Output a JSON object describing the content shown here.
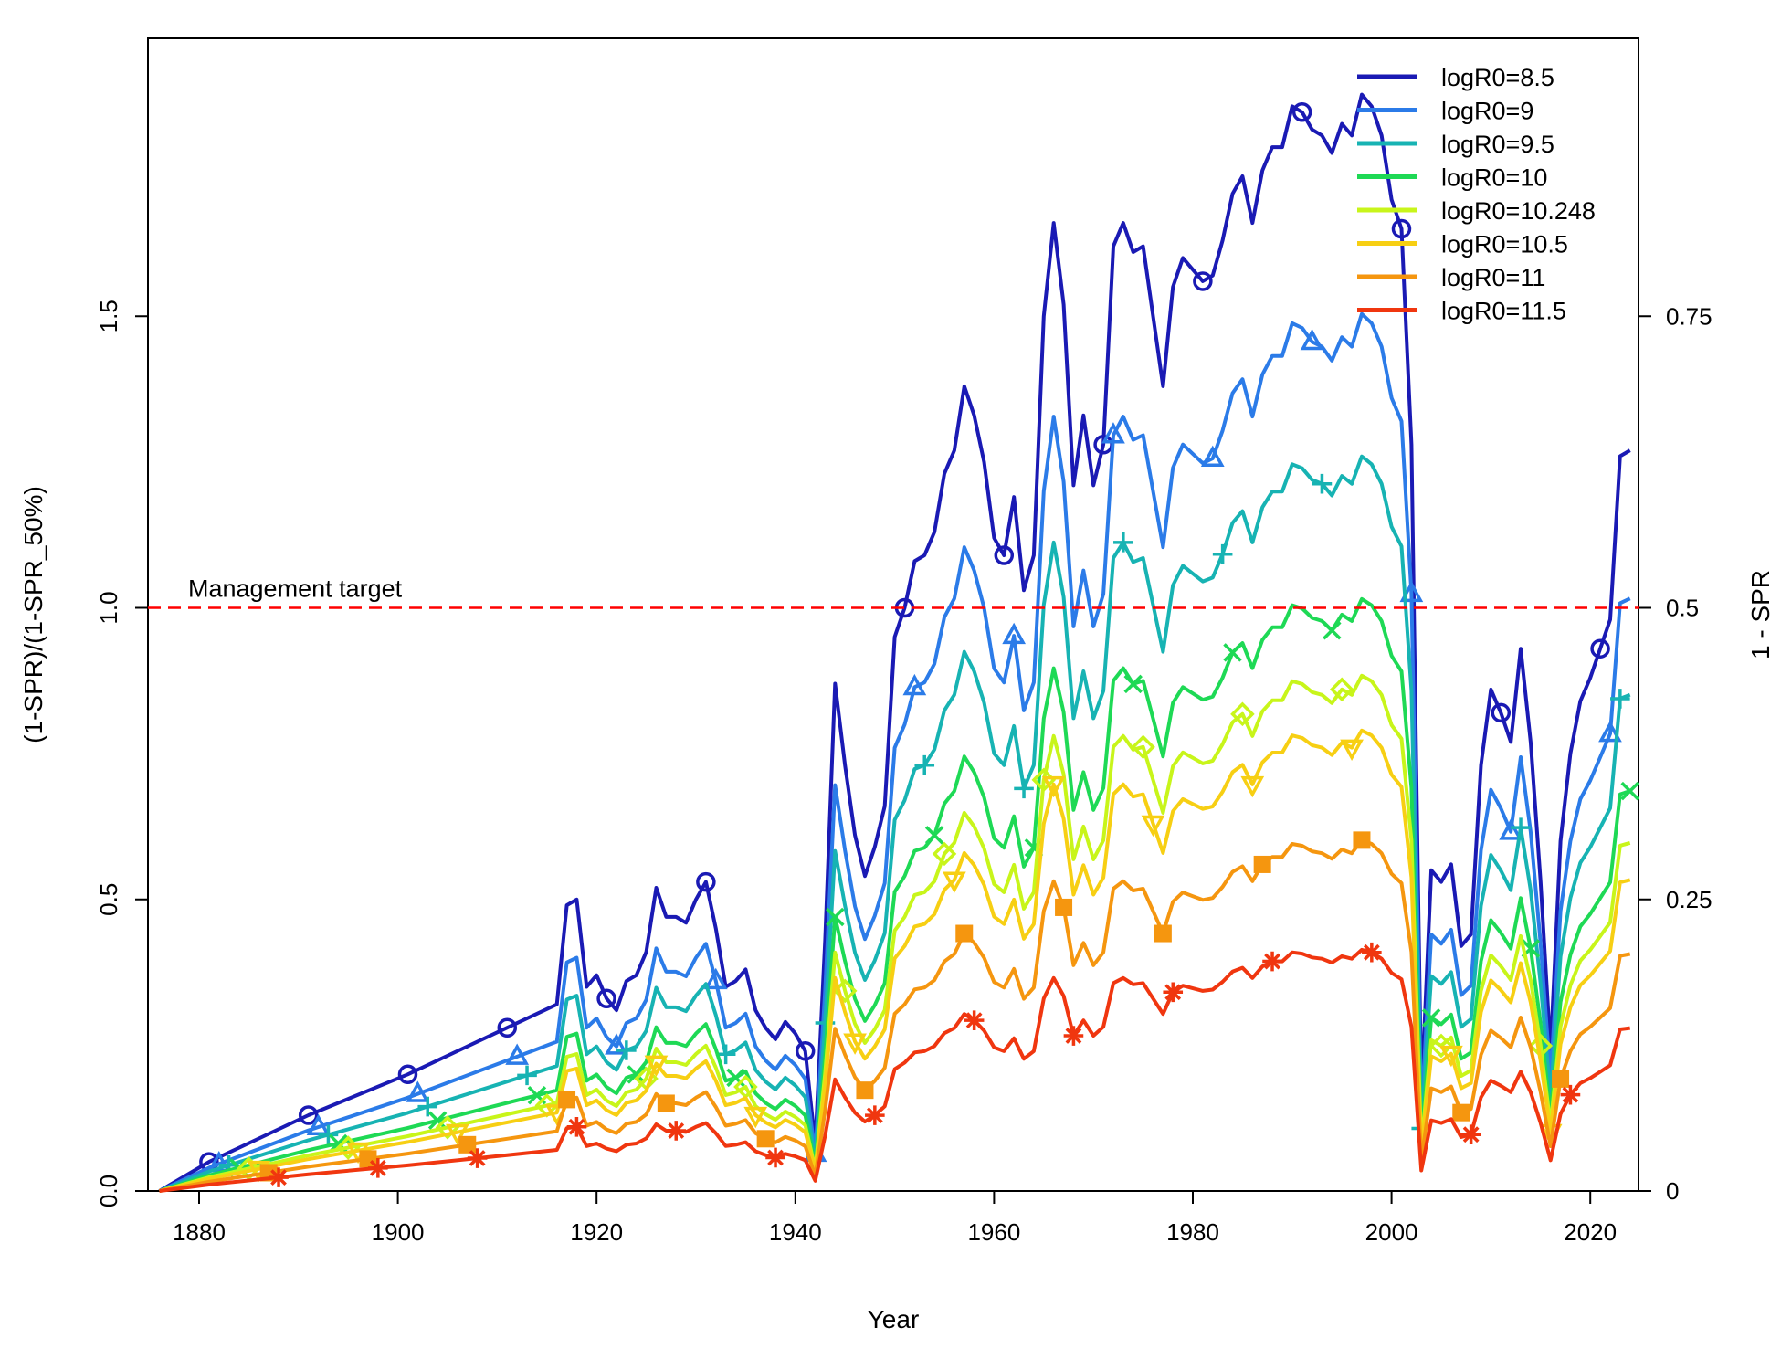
{
  "chart_data": {
    "type": "line",
    "xlabel": "Year",
    "ylabel": "(1-SPR)/(1-SPR_50%)",
    "y2label": "1 - SPR",
    "xlim": [
      1875,
      2024
    ],
    "ylim": [
      0,
      1.95
    ],
    "xticks": [
      1880,
      1900,
      1920,
      1940,
      1960,
      1980,
      2000,
      2020
    ],
    "xtick_labels": [
      "1880",
      "1900",
      "1920",
      "1940",
      "1960",
      "1980",
      "2000",
      "2020"
    ],
    "yticks": [
      0,
      0.5,
      1.0,
      1.5
    ],
    "ytick_labels": [
      "0.0",
      "0.5",
      "1.0",
      "1.5"
    ],
    "y2ticks": [
      0,
      0.5,
      1.0,
      1.5
    ],
    "y2tick_labels": [
      "0",
      "0.25",
      "0.5",
      "0.75"
    ],
    "reference_line": {
      "y": 1.0,
      "label": "Management target",
      "color": "#ff0000",
      "style": "dashed"
    },
    "legend_position": "top-right",
    "base_years": [
      1876,
      1881,
      1891,
      1901,
      1911,
      1916,
      1917,
      1918,
      1919,
      1920,
      1921,
      1922,
      1923,
      1924,
      1925,
      1926,
      1927,
      1928,
      1929,
      1930,
      1931,
      1932,
      1933,
      1934,
      1935,
      1936,
      1937,
      1938,
      1939,
      1940,
      1941,
      1942,
      1943,
      1944,
      1945,
      1946,
      1947,
      1948,
      1949,
      1950,
      1951,
      1952,
      1953,
      1954,
      1955,
      1956,
      1957,
      1958,
      1959,
      1960,
      1961,
      1962,
      1963,
      1964,
      1965,
      1966,
      1967,
      1968,
      1969,
      1970,
      1971,
      1972,
      1973,
      1974,
      1975,
      1976,
      1977,
      1978,
      1979,
      1980,
      1981,
      1982,
      1983,
      1984,
      1985,
      1986,
      1987,
      1988,
      1989,
      1990,
      1991,
      1992,
      1993,
      1994,
      1995,
      1996,
      1997,
      1998,
      1999,
      2000,
      2001,
      2002,
      2003,
      2004,
      2005,
      2006,
      2007,
      2008,
      2009,
      2010,
      2011,
      2012,
      2013,
      2014,
      2015,
      2016,
      2017,
      2018,
      2019,
      2020,
      2021,
      2022,
      2023,
      2024
    ],
    "base_values": [
      0.0,
      0.05,
      0.13,
      0.2,
      0.28,
      0.32,
      0.49,
      0.5,
      0.35,
      0.37,
      0.33,
      0.31,
      0.36,
      0.37,
      0.41,
      0.52,
      0.47,
      0.47,
      0.46,
      0.5,
      0.53,
      0.45,
      0.35,
      0.36,
      0.38,
      0.31,
      0.28,
      0.26,
      0.29,
      0.27,
      0.24,
      0.08,
      0.43,
      0.87,
      0.73,
      0.61,
      0.54,
      0.59,
      0.66,
      0.95,
      1.0,
      1.08,
      1.09,
      1.13,
      1.23,
      1.27,
      1.38,
      1.33,
      1.25,
      1.12,
      1.09,
      1.19,
      1.03,
      1.09,
      1.5,
      1.66,
      1.52,
      1.21,
      1.33,
      1.21,
      1.28,
      1.62,
      1.66,
      1.61,
      1.62,
      1.5,
      1.38,
      1.55,
      1.6,
      1.58,
      1.56,
      1.57,
      1.63,
      1.71,
      1.74,
      1.66,
      1.75,
      1.79,
      1.79,
      1.86,
      1.85,
      1.82,
      1.81,
      1.78,
      1.83,
      1.81,
      1.88,
      1.86,
      1.81,
      1.7,
      1.65,
      1.28,
      0.16,
      0.55,
      0.53,
      0.56,
      0.42,
      0.44,
      0.73,
      0.86,
      0.82,
      0.77,
      0.93,
      0.77,
      0.53,
      0.24,
      0.6,
      0.75,
      0.84,
      0.88,
      0.93,
      0.98,
      1.26,
      1.27
    ],
    "series": [
      {
        "name": "logR0=8.5",
        "color": "#1a1ab4",
        "marker": "circle",
        "scale": 1.0
      },
      {
        "name": "logR0=9",
        "color": "#2b7be8",
        "marker": "triangle",
        "scale": 0.8
      },
      {
        "name": "logR0=9.5",
        "color": "#17b3b3",
        "marker": "plus",
        "scale": 0.67
      },
      {
        "name": "logR0=10",
        "color": "#1ed955",
        "marker": "x",
        "scale": 0.54
      },
      {
        "name": "logR0=10.248",
        "color": "#c8f51a",
        "marker": "diamond",
        "scale": 0.47
      },
      {
        "name": "logR0=10.5",
        "color": "#f7cf13",
        "marker": "triangle-down",
        "scale": 0.42
      },
      {
        "name": "logR0=11",
        "color": "#f5960f",
        "marker": "square",
        "scale": 0.32
      },
      {
        "name": "logR0=11.5",
        "color": "#f0360f",
        "marker": "asterisk",
        "scale": 0.22
      }
    ]
  }
}
